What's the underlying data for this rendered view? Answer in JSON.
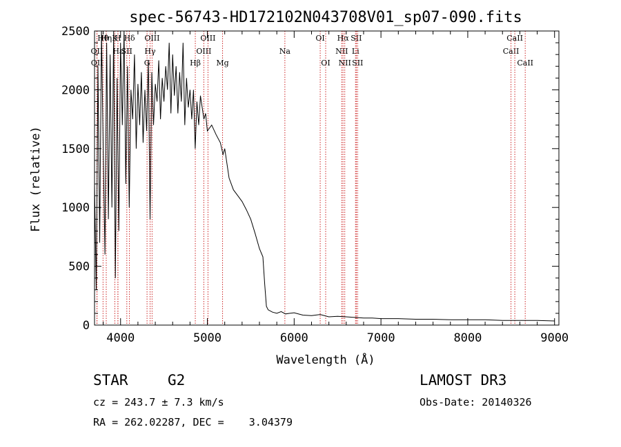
{
  "chart_data": {
    "type": "line",
    "title": "spec-56743-HD172102N043708V01_sp07-090.fits",
    "xlabel": "Wavelength (Å)",
    "ylabel": "Flux (relative)",
    "xlim": [
      3700,
      9050
    ],
    "ylim": [
      0,
      2500
    ],
    "xticks": [
      "4000",
      "5000",
      "6000",
      "7000",
      "8000",
      "9000"
    ],
    "yticks": [
      "0",
      "500",
      "1000",
      "1500",
      "2000",
      "2500"
    ],
    "series": [
      {
        "name": "flux",
        "x": [
          3700,
          3720,
          3740,
          3760,
          3780,
          3800,
          3820,
          3840,
          3860,
          3880,
          3900,
          3920,
          3940,
          3960,
          3980,
          4000,
          4020,
          4040,
          4060,
          4080,
          4100,
          4120,
          4140,
          4160,
          4180,
          4200,
          4220,
          4240,
          4260,
          4280,
          4300,
          4320,
          4340,
          4360,
          4380,
          4400,
          4420,
          4440,
          4460,
          4480,
          4500,
          4520,
          4540,
          4560,
          4580,
          4600,
          4620,
          4640,
          4660,
          4680,
          4700,
          4720,
          4740,
          4760,
          4780,
          4800,
          4820,
          4840,
          4860,
          4880,
          4900,
          4920,
          4940,
          4960,
          4980,
          5000,
          5050,
          5100,
          5150,
          5180,
          5200,
          5250,
          5300,
          5350,
          5400,
          5450,
          5500,
          5550,
          5600,
          5640,
          5660,
          5680,
          5700,
          5750,
          5800,
          5850,
          5900,
          5950,
          6000,
          6100,
          6200,
          6300,
          6400,
          6500,
          6600,
          6700,
          6800,
          6900,
          7000,
          7200,
          7400,
          7600,
          7800,
          8000,
          8200,
          8400,
          8600,
          8800,
          9000
        ],
        "y": [
          1200,
          300,
          2200,
          700,
          2500,
          1500,
          600,
          2400,
          900,
          2300,
          1000,
          2500,
          400,
          2100,
          800,
          2400,
          1700,
          2500,
          1200,
          2200,
          1000,
          2000,
          1750,
          2300,
          1500,
          2050,
          1700,
          2150,
          1550,
          2000,
          1650,
          2250,
          900,
          2150,
          1700,
          2050,
          1900,
          2250,
          1750,
          2100,
          1900,
          2200,
          2000,
          2400,
          1800,
          2300,
          1950,
          2200,
          1800,
          2150,
          1900,
          2400,
          1700,
          2100,
          1850,
          2000,
          1750,
          2000,
          1500,
          1900,
          1700,
          1950,
          1850,
          1750,
          1800,
          1650,
          1700,
          1620,
          1550,
          1450,
          1500,
          1250,
          1150,
          1100,
          1050,
          980,
          900,
          780,
          650,
          580,
          350,
          160,
          130,
          110,
          100,
          115,
          95,
          100,
          105,
          85,
          80,
          90,
          70,
          75,
          70,
          65,
          60,
          60,
          55,
          55,
          50,
          50,
          45,
          45,
          45,
          40,
          40,
          40,
          35
        ]
      }
    ],
    "spectral_lines": [
      {
        "label": "OII",
        "wavelength": 3727,
        "row": 1
      },
      {
        "label": "OII",
        "wavelength": 3729,
        "row": 2
      },
      {
        "label": "Hθ",
        "wavelength": 3798,
        "row": 0
      },
      {
        "label": "Hη",
        "wavelength": 3835,
        "row": 0
      },
      {
        "label": "K",
        "wavelength": 3934,
        "row": 0
      },
      {
        "label": "H",
        "wavelength": 3969,
        "row": 0
      },
      {
        "label": "Hε",
        "wavelength": 3970,
        "row": 1
      },
      {
        "label": "Hδ",
        "wavelength": 4102,
        "row": 0
      },
      {
        "label": "SII",
        "wavelength": 4072,
        "row": 1
      },
      {
        "label": "G",
        "wavelength": 4305,
        "row": 2
      },
      {
        "label": "Hγ",
        "wavelength": 4340,
        "row": 1
      },
      {
        "label": "OIII",
        "wavelength": 4363,
        "row": 0
      },
      {
        "label": "Hβ",
        "wavelength": 4861,
        "row": 2
      },
      {
        "label": "OIII",
        "wavelength": 4959,
        "row": 1
      },
      {
        "label": "OIII",
        "wavelength": 5007,
        "row": 0
      },
      {
        "label": "Mg",
        "wavelength": 5175,
        "row": 2
      },
      {
        "label": "Na",
        "wavelength": 5893,
        "row": 1
      },
      {
        "label": "OI",
        "wavelength": 6300,
        "row": 0
      },
      {
        "label": "OI",
        "wavelength": 6363,
        "row": 2
      },
      {
        "label": "NII",
        "wavelength": 6548,
        "row": 1
      },
      {
        "label": "Hα",
        "wavelength": 6563,
        "row": 0
      },
      {
        "label": "NII",
        "wavelength": 6583,
        "row": 2
      },
      {
        "label": "Li",
        "wavelength": 6707,
        "row": 1
      },
      {
        "label": "SII",
        "wavelength": 6716,
        "row": 0
      },
      {
        "label": "SII",
        "wavelength": 6731,
        "row": 2
      },
      {
        "label": "CaII",
        "wavelength": 8498,
        "row": 1
      },
      {
        "label": "CaII",
        "wavelength": 8542,
        "row": 0
      },
      {
        "label": "CaII",
        "wavelength": 8662,
        "row": 2
      }
    ]
  },
  "info": {
    "object_class": "STAR",
    "subclass": "G2",
    "cz": "cz = 243.7 ± 7.3 km/s",
    "coords": "RA = 262.02287, DEC =    3.04379",
    "survey": "LAMOST DR3",
    "obs_date": "Obs-Date: 20140326"
  },
  "colors": {
    "line_marker": "#cc2222",
    "spectrum": "#000000"
  }
}
